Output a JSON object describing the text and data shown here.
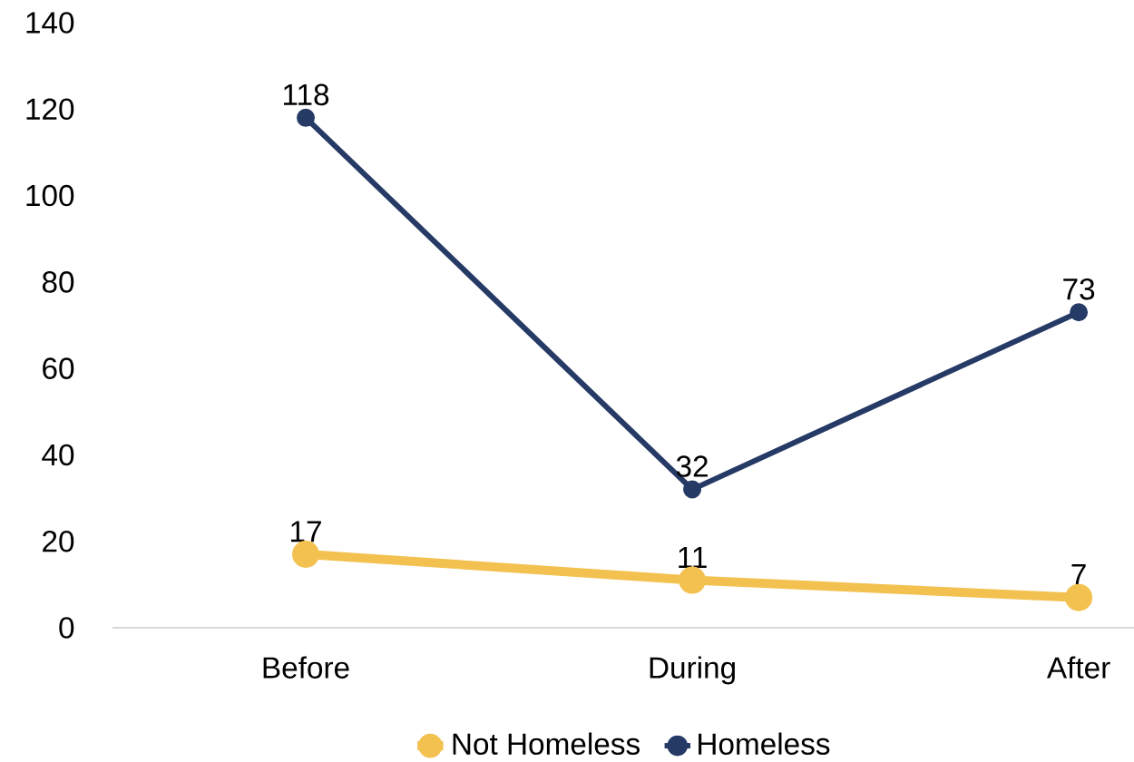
{
  "chart_data": {
    "type": "line",
    "categories": [
      "Before",
      "During",
      "After"
    ],
    "series": [
      {
        "name": "Not Homeless",
        "color": "#f3c14f",
        "values": [
          17,
          11,
          7
        ]
      },
      {
        "name": "Homeless",
        "color": "#263a66",
        "values": [
          118,
          32,
          73
        ]
      }
    ],
    "ylim": [
      0,
      140
    ],
    "yticks": [
      0,
      20,
      40,
      60,
      80,
      100,
      120,
      140
    ],
    "legend": "bottom",
    "marker": "circle",
    "line_style": "solid",
    "data_labels": true
  }
}
